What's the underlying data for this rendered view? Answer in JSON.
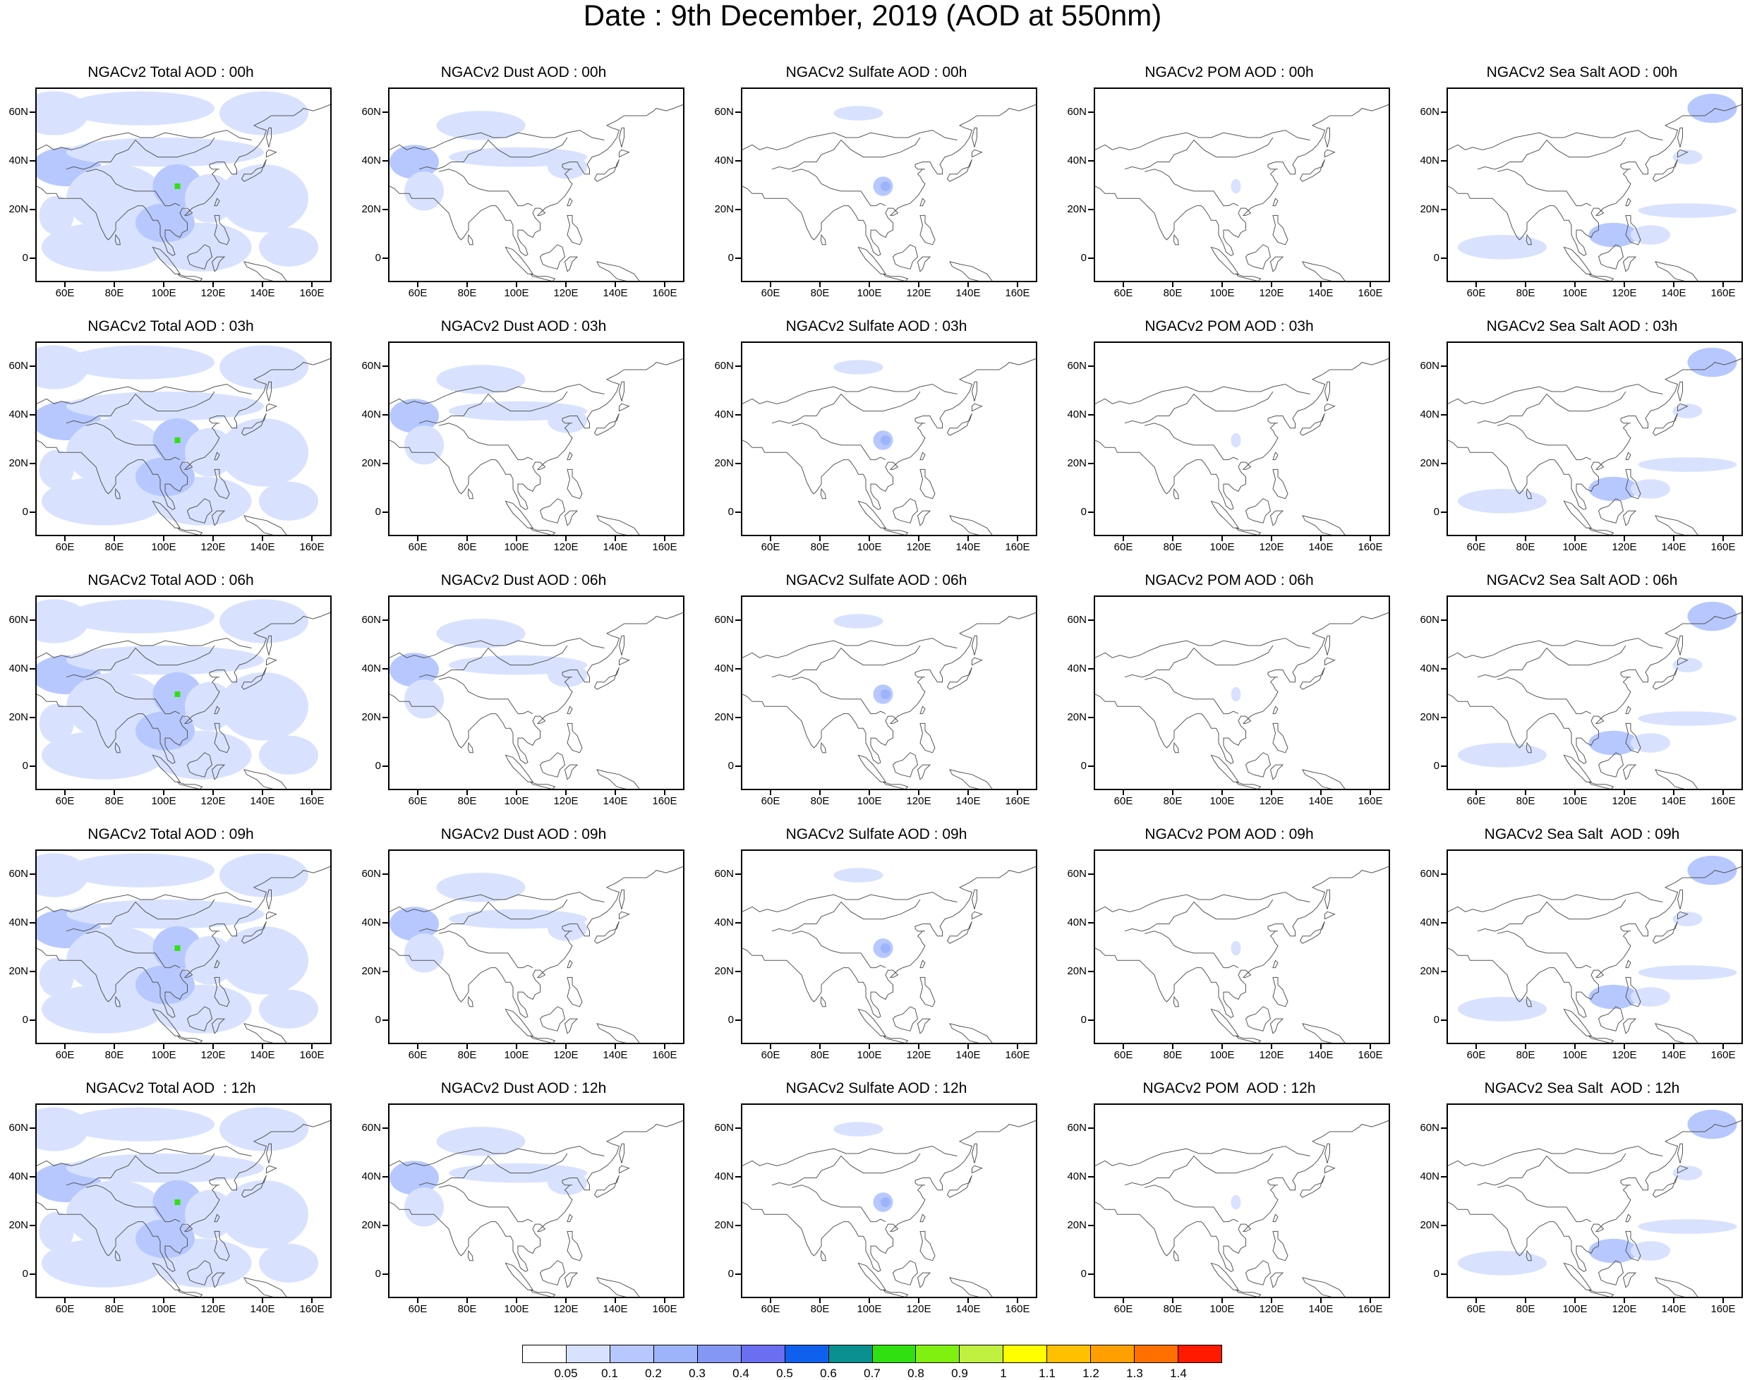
{
  "title": "Date : 9th December, 2019 (AOD at 550nm)",
  "axes": {
    "y_labels": [
      "60N",
      "40N",
      "20N",
      "0"
    ],
    "y_values": [
      60,
      40,
      20,
      0
    ],
    "x_labels": [
      "60E",
      "80E",
      "100E",
      "120E",
      "140E",
      "160E"
    ],
    "x_values": [
      60,
      80,
      100,
      120,
      140,
      160
    ],
    "lon_range": [
      48,
      168
    ],
    "lat_range": [
      -10,
      70
    ]
  },
  "columns": [
    "Total",
    "Dust",
    "Sulfate",
    "POM",
    "Sea Salt"
  ],
  "rows": [
    "00h",
    "03h",
    "06h",
    "09h",
    "12h"
  ],
  "panel_titles": [
    [
      "NGACv2 Total AOD : 00h",
      "NGACv2 Dust AOD : 00h",
      "NGACv2 Sulfate AOD : 00h",
      "NGACv2 POM AOD : 00h",
      "NGACv2 Sea Salt AOD : 00h"
    ],
    [
      "NGACv2 Total AOD : 03h",
      "NGACv2 Dust AOD : 03h",
      "NGACv2 Sulfate AOD : 03h",
      "NGACv2 POM AOD : 03h",
      "NGACv2 Sea Salt AOD : 03h"
    ],
    [
      "NGACv2 Total AOD : 06h",
      "NGACv2 Dust AOD : 06h",
      "NGACv2 Sulfate AOD : 06h",
      "NGACv2 POM AOD : 06h",
      "NGACv2 Sea Salt AOD : 06h"
    ],
    [
      "NGACv2 Total AOD : 09h",
      "NGACv2 Dust AOD : 09h",
      "NGACv2 Sulfate AOD : 09h",
      "NGACv2 POM AOD : 09h",
      "NGACv2 Sea Salt  AOD : 09h"
    ],
    [
      "NGACv2 Total AOD  : 12h",
      "NGACv2 Dust AOD : 12h",
      "NGACv2 Sulfate AOD : 12h",
      "NGACv2 POM  AOD : 12h",
      "NGACv2 Sea Salt  AOD : 12h"
    ]
  ],
  "colorbar": {
    "labels": [
      "0.05",
      "0.1",
      "0.2",
      "0.3",
      "0.4",
      "0.5",
      "0.6",
      "0.7",
      "0.8",
      "0.9",
      "1",
      "1.1",
      "1.2",
      "1.3",
      "1.4"
    ],
    "colors": [
      "#ffffff",
      "#d8e2ff",
      "#b6c8ff",
      "#9db4fb",
      "#8497f2",
      "#6a6ef0",
      "#1060ee",
      "#0a9090",
      "#30e010",
      "#80f010",
      "#c0f040",
      "#ffff00",
      "#ffc000",
      "#ffa000",
      "#ff7000",
      "#ff1a00"
    ]
  },
  "map_colors": {
    "coast": "#555555",
    "light": "#d8e2ff",
    "medium": "#b6c8ff",
    "dark": "#9db4fb",
    "hotspot": "#30e010"
  }
}
